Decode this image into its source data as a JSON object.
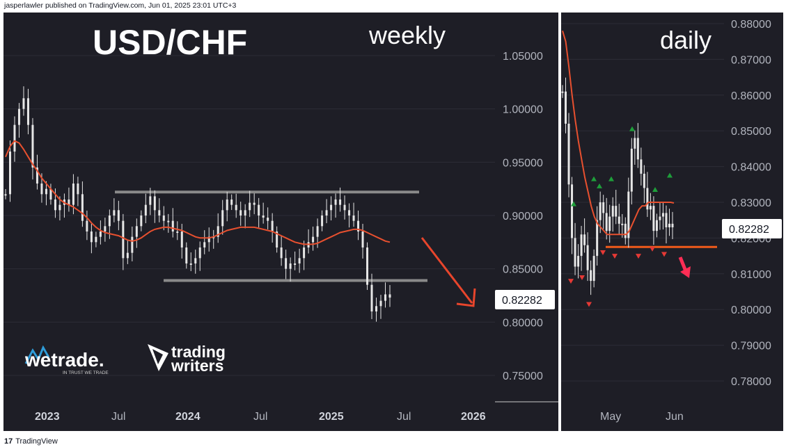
{
  "header": {
    "publisher_line": "jasperlawler published on TradingView.com, Jun 01, 2025 23:01 UTC+3"
  },
  "footer": {
    "brand": "TradingView"
  },
  "colors": {
    "background": "#1e1e26",
    "candle": "#e6e6e6",
    "moving_average": "#e8502f",
    "level_line": "#8a8a8a",
    "support_line": "#f05a1a",
    "arrow": "#e8452c",
    "daily_arrow": "#ff2d55",
    "up_marker": "#1e9e3a",
    "down_marker": "#e53935"
  },
  "logos": {
    "wetrade": "wetrade.",
    "wetrade_tagline": "IN TRUST WE TRADE",
    "trading_writers_line1": "trading",
    "trading_writers_line2": "writers"
  },
  "chart_data": [
    {
      "type": "candlestick",
      "title": "USD/CHF",
      "period_label": "weekly",
      "ylim": [
        0.72,
        1.08
      ],
      "yticks": [
        "1.05000",
        "1.00000",
        "0.95000",
        "0.90000",
        "0.85000",
        "0.80000",
        "0.75000"
      ],
      "xticks": [
        "2023",
        "Jul",
        "2024",
        "Jul",
        "2025",
        "Jul",
        "2026"
      ],
      "last_price": "0.82282",
      "resistance_level": 0.922,
      "support_level": 0.839,
      "series": [
        {
          "name": "price",
          "values": [
            0.92,
            0.96,
            0.985,
            1.0,
            1.01,
            0.985,
            0.945,
            0.93,
            0.92,
            0.925,
            0.915,
            0.905,
            0.91,
            0.915,
            0.91,
            0.93,
            0.92,
            0.895,
            0.885,
            0.875,
            0.88,
            0.885,
            0.89,
            0.9,
            0.905,
            0.895,
            0.86,
            0.865,
            0.88,
            0.89,
            0.9,
            0.91,
            0.918,
            0.905,
            0.9,
            0.895,
            0.895,
            0.885,
            0.885,
            0.87,
            0.855,
            0.855,
            0.86,
            0.87,
            0.875,
            0.88,
            0.88,
            0.89,
            0.905,
            0.915,
            0.91,
            0.905,
            0.9,
            0.905,
            0.912,
            0.91,
            0.9,
            0.898,
            0.895,
            0.885,
            0.87,
            0.86,
            0.85,
            0.855,
            0.855,
            0.86,
            0.87,
            0.875,
            0.88,
            0.89,
            0.9,
            0.905,
            0.91,
            0.915,
            0.91,
            0.905,
            0.9,
            0.895,
            0.885,
            0.87,
            0.835,
            0.81,
            0.815,
            0.82,
            0.826,
            0.823
          ]
        },
        {
          "name": "moving average",
          "values": [
            0.955,
            0.965,
            0.97,
            0.968,
            0.962,
            0.955,
            0.948,
            0.942,
            0.935,
            0.93,
            0.925,
            0.92,
            0.915,
            0.912,
            0.91,
            0.908,
            0.905,
            0.902,
            0.898,
            0.893,
            0.889,
            0.886,
            0.884,
            0.883,
            0.882,
            0.881,
            0.879,
            0.877,
            0.876,
            0.877,
            0.879,
            0.882,
            0.885,
            0.887,
            0.888,
            0.889,
            0.889,
            0.888,
            0.887,
            0.886,
            0.884,
            0.882,
            0.88,
            0.879,
            0.879,
            0.879,
            0.88,
            0.882,
            0.884,
            0.886,
            0.887,
            0.888,
            0.889,
            0.889,
            0.889,
            0.889,
            0.888,
            0.887,
            0.886,
            0.885,
            0.883,
            0.881,
            0.879,
            0.877,
            0.875,
            0.874,
            0.873,
            0.873,
            0.873,
            0.874,
            0.876,
            0.878,
            0.88,
            0.882,
            0.884,
            0.885,
            0.886,
            0.887,
            0.887,
            0.886,
            0.884,
            0.882,
            0.88,
            0.878,
            0.876,
            0.875
          ]
        }
      ]
    },
    {
      "type": "candlestick",
      "period_label": "daily",
      "ylim": [
        0.77,
        0.885
      ],
      "yticks": [
        "0.88000",
        "0.87000",
        "0.86000",
        "0.85000",
        "0.84000",
        "0.83000",
        "0.82000",
        "0.81000",
        "0.80000",
        "0.79000",
        "0.78000"
      ],
      "xticks": [
        "May",
        "Jun"
      ],
      "last_price": "0.82282",
      "support_level": 0.8175,
      "series": [
        {
          "name": "price",
          "values": [
            0.861,
            0.852,
            0.835,
            0.82,
            0.812,
            0.815,
            0.821,
            0.818,
            0.811,
            0.808,
            0.815,
            0.825,
            0.83,
            0.827,
            0.822,
            0.826,
            0.829,
            0.826,
            0.824,
            0.824,
            0.82,
            0.833,
            0.845,
            0.848,
            0.842,
            0.838,
            0.834,
            0.828,
            0.829,
            0.822,
            0.825,
            0.826,
            0.827,
            0.823,
            0.824,
            0.823
          ]
        },
        {
          "name": "moving average",
          "values": [
            0.878,
            0.875,
            0.868,
            0.86,
            0.853,
            0.847,
            0.842,
            0.837,
            0.833,
            0.829,
            0.826,
            0.824,
            0.823,
            0.822,
            0.821,
            0.821,
            0.821,
            0.821,
            0.821,
            0.821,
            0.821,
            0.822,
            0.824,
            0.826,
            0.828,
            0.829,
            0.829,
            0.83,
            0.83,
            0.83,
            0.83,
            0.83,
            0.83,
            0.83,
            0.83,
            0.8298
          ]
        }
      ],
      "up_markers_at": [
        0.8295,
        0.8345,
        0.8365,
        0.8365,
        0.8505,
        0.8335,
        0.8375
      ],
      "down_markers_at": [
        0.808,
        0.809,
        0.8015,
        0.816,
        0.815,
        0.815,
        0.817,
        0.8155
      ]
    }
  ]
}
